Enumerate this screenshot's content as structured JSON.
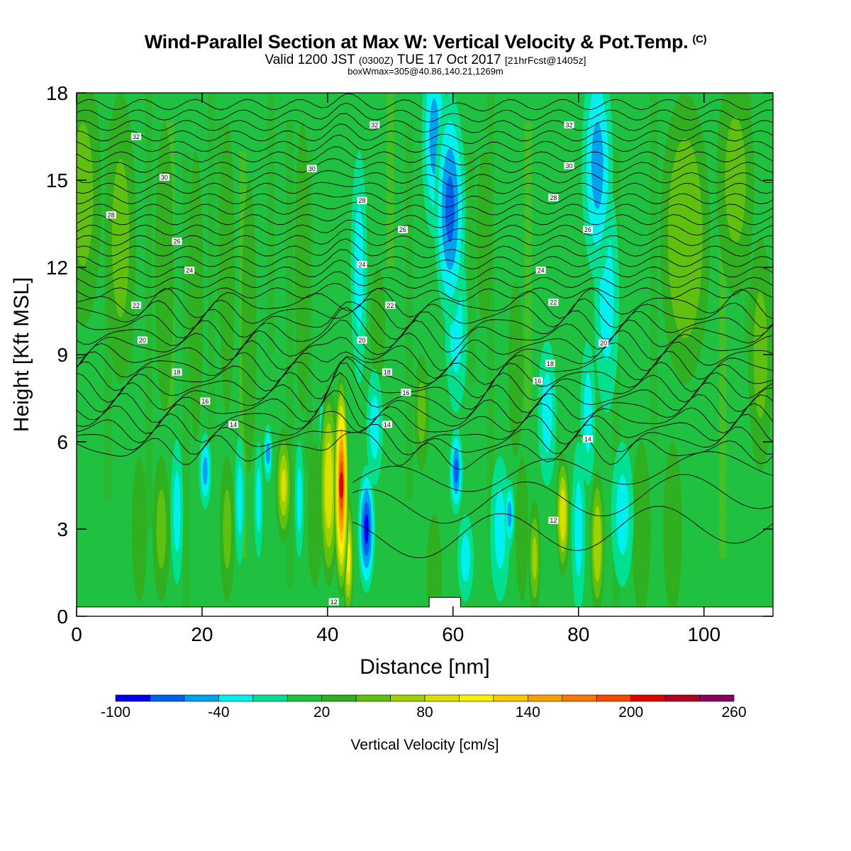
{
  "title": {
    "main": "Wind-Parallel Section at Max W: Vertical Velocity & Pot.Temp.",
    "copyright": "(C)",
    "valid_prefix": "Valid 1200 JST",
    "utc": "(0300Z)",
    "valid_date": "TUE 17 Oct 2017",
    "forecast": "[21hrFcst@1405z]",
    "box": "boxWmax=305@40.86,140.21,1269m"
  },
  "chart_data": {
    "type": "heatmap",
    "xlabel": "Distance [nm]",
    "ylabel": "Height [Kft MSL]",
    "xlim": [
      0,
      111
    ],
    "ylim": [
      0,
      18
    ],
    "x_ticks": [
      0,
      20,
      40,
      60,
      80,
      100
    ],
    "y_ticks": [
      0,
      3,
      6,
      9,
      12,
      15,
      18
    ],
    "colorbar": {
      "label": "Vertical Velocity [cm/s]",
      "tick_labels": [
        "-100",
        "-40",
        "20",
        "80",
        "140",
        "200",
        "260"
      ],
      "tick_values": [
        -100,
        -40,
        20,
        80,
        140,
        200,
        260
      ],
      "levels": [
        -100,
        -80,
        -60,
        -40,
        -20,
        0,
        20,
        40,
        60,
        80,
        100,
        120,
        140,
        160,
        180,
        200,
        220,
        240,
        260
      ],
      "colors": [
        "#0000ee",
        "#0060ee",
        "#00a0f0",
        "#00f0f0",
        "#00e090",
        "#20c040",
        "#30b020",
        "#60c010",
        "#a0d000",
        "#d8e000",
        "#f8f000",
        "#f8c800",
        "#f8a000",
        "#f87800",
        "#f84800",
        "#e00000",
        "#b00020",
        "#880060",
        "#600090"
      ]
    },
    "background_value": 0,
    "features": [
      {
        "x": 1,
        "z": 14.5,
        "width": 3,
        "depth": 4.5,
        "value": 40
      },
      {
        "x": 7,
        "z": 13,
        "width": 2.5,
        "depth": 5,
        "value": 40
      },
      {
        "x": 14,
        "z": 12,
        "width": 1.5,
        "depth": 5,
        "value": 20
      },
      {
        "x": 19,
        "z": 11,
        "width": 1.2,
        "depth": 5,
        "value": 20
      },
      {
        "x": 24,
        "z": 12,
        "width": 1.2,
        "depth": 5,
        "value": 20
      },
      {
        "x": 27.5,
        "z": 10,
        "width": 1.2,
        "depth": 5,
        "value": 20
      },
      {
        "x": 36,
        "z": 12,
        "width": 1.2,
        "depth": 5,
        "value": 20
      },
      {
        "x": 10,
        "z": 3,
        "width": 1.2,
        "depth": 2.5,
        "value": 20
      },
      {
        "x": 13.5,
        "z": 3,
        "width": 1.4,
        "depth": 2.5,
        "value": 40
      },
      {
        "x": 16,
        "z": 3.6,
        "width": 1,
        "depth": 2.5,
        "value": -40
      },
      {
        "x": 20.5,
        "z": 5,
        "width": 1,
        "depth": 1.3,
        "value": -60
      },
      {
        "x": 24,
        "z": 3,
        "width": 1.2,
        "depth": 2.5,
        "value": 40
      },
      {
        "x": 26,
        "z": 4,
        "width": 0.8,
        "depth": 2.2,
        "value": -40
      },
      {
        "x": 29,
        "z": 4,
        "width": 0.7,
        "depth": 2,
        "value": -40
      },
      {
        "x": 30.5,
        "z": 5.6,
        "width": 0.7,
        "depth": 1,
        "value": -60
      },
      {
        "x": 33,
        "z": 4.5,
        "width": 1.3,
        "depth": 2,
        "value": 80
      },
      {
        "x": 35.5,
        "z": 4,
        "width": 0.7,
        "depth": 2,
        "value": -40
      },
      {
        "x": 38,
        "z": 3.5,
        "width": 1.2,
        "depth": 2.5,
        "value": 20
      },
      {
        "x": 39.3,
        "z": 6.5,
        "width": 0.6,
        "depth": 1,
        "value": -80
      },
      {
        "x": 40.2,
        "z": 4.5,
        "width": 1.5,
        "depth": 3.5,
        "value": 90
      },
      {
        "x": 42.2,
        "z": 4.5,
        "width": 1.2,
        "depth": 3.9,
        "value": 200
      },
      {
        "x": 42.3,
        "z": 6.8,
        "width": 0.7,
        "depth": 1.5,
        "value": 120
      },
      {
        "x": 43.3,
        "z": 2,
        "width": 0.9,
        "depth": 2.2,
        "value": 100
      },
      {
        "x": 46.2,
        "z": 3,
        "width": 1.4,
        "depth": 2.2,
        "value": -100
      },
      {
        "x": 47.5,
        "z": 6.5,
        "width": 1.3,
        "depth": 2,
        "value": -40
      },
      {
        "x": 45,
        "z": 12,
        "width": 1.3,
        "depth": 4,
        "value": -40
      },
      {
        "x": 48,
        "z": 10,
        "width": 1.2,
        "depth": 2,
        "value": 20
      },
      {
        "x": 55,
        "z": 7,
        "width": 1.2,
        "depth": 2,
        "value": 40
      },
      {
        "x": 57,
        "z": 1.5,
        "width": 1.2,
        "depth": 2,
        "value": 30
      },
      {
        "x": 57,
        "z": 16.5,
        "width": 2,
        "depth": 3.5,
        "value": -50
      },
      {
        "x": 59.5,
        "z": 14,
        "width": 2.5,
        "depth": 4,
        "value": -70
      },
      {
        "x": 60.5,
        "z": 10,
        "width": 1.8,
        "depth": 3,
        "value": -35
      },
      {
        "x": 60.5,
        "z": 5,
        "width": 1.1,
        "depth": 1.5,
        "value": -70
      },
      {
        "x": 62,
        "z": 2,
        "width": 1.3,
        "depth": 1.5,
        "value": -35
      },
      {
        "x": 65,
        "z": 13,
        "width": 1.3,
        "depth": 3,
        "value": 20
      },
      {
        "x": 67.5,
        "z": 3,
        "width": 1.6,
        "depth": 2.5,
        "value": -35
      },
      {
        "x": 69,
        "z": 3.5,
        "width": 0.8,
        "depth": 1.2,
        "value": -60
      },
      {
        "x": 71,
        "z": 3,
        "width": 1,
        "depth": 2.5,
        "value": 30
      },
      {
        "x": 73,
        "z": 2,
        "width": 1,
        "depth": 2,
        "value": 60
      },
      {
        "x": 70,
        "z": 8.5,
        "width": 1.2,
        "depth": 3,
        "value": 30
      },
      {
        "x": 75,
        "z": 7,
        "width": 1.5,
        "depth": 2.5,
        "value": -40
      },
      {
        "x": 77.5,
        "z": 3.5,
        "width": 1.1,
        "depth": 2.1,
        "value": 90
      },
      {
        "x": 80,
        "z": 3,
        "width": 1.1,
        "depth": 3,
        "value": -40
      },
      {
        "x": 81.5,
        "z": 7,
        "width": 1.2,
        "depth": 2.5,
        "value": -40
      },
      {
        "x": 83,
        "z": 2.5,
        "width": 1.2,
        "depth": 2.5,
        "value": 70
      },
      {
        "x": 83,
        "z": 15.5,
        "width": 2.5,
        "depth": 4,
        "value": -60
      },
      {
        "x": 84.5,
        "z": 11,
        "width": 2,
        "depth": 4,
        "value": -35
      },
      {
        "x": 87,
        "z": 3.5,
        "width": 1.8,
        "depth": 2.5,
        "value": -40
      },
      {
        "x": 90,
        "z": 3,
        "width": 1.5,
        "depth": 3,
        "value": 20
      },
      {
        "x": 95,
        "z": 3,
        "width": 1.5,
        "depth": 3,
        "value": 20
      },
      {
        "x": 97,
        "z": 13,
        "width": 4,
        "depth": 5,
        "value": 45
      },
      {
        "x": 105,
        "z": 15,
        "width": 3,
        "depth": 4,
        "value": 40
      },
      {
        "x": 109,
        "z": 9,
        "width": 2,
        "depth": 4,
        "value": 40
      }
    ],
    "contour_labels": [
      {
        "text": "32",
        "x": 9.5,
        "y": 16.5
      },
      {
        "text": "32",
        "x": 47.5,
        "y": 16.9
      },
      {
        "text": "32",
        "x": 78.5,
        "y": 16.9
      },
      {
        "text": "30",
        "x": 14,
        "y": 15.1
      },
      {
        "text": "30",
        "x": 37.5,
        "y": 15.4
      },
      {
        "text": "30",
        "x": 78.5,
        "y": 15.5
      },
      {
        "text": "28",
        "x": 5.5,
        "y": 13.8
      },
      {
        "text": "28",
        "x": 45.5,
        "y": 14.3
      },
      {
        "text": "28",
        "x": 76,
        "y": 14.4
      },
      {
        "text": "26",
        "x": 16,
        "y": 12.9
      },
      {
        "text": "26",
        "x": 52,
        "y": 13.3
      },
      {
        "text": "26",
        "x": 81.5,
        "y": 13.3
      },
      {
        "text": "24",
        "x": 18,
        "y": 11.9
      },
      {
        "text": "24",
        "x": 45.5,
        "y": 12.1
      },
      {
        "text": "24",
        "x": 74,
        "y": 11.9
      },
      {
        "text": "22",
        "x": 9.5,
        "y": 10.7
      },
      {
        "text": "22",
        "x": 50,
        "y": 10.7
      },
      {
        "text": "22",
        "x": 76,
        "y": 10.8
      },
      {
        "text": "20",
        "x": 10.5,
        "y": 9.5
      },
      {
        "text": "20",
        "x": 45.5,
        "y": 9.5
      },
      {
        "text": "20",
        "x": 84,
        "y": 9.4
      },
      {
        "text": "18",
        "x": 16,
        "y": 8.4
      },
      {
        "text": "18",
        "x": 49.5,
        "y": 8.4
      },
      {
        "text": "18",
        "x": 75.5,
        "y": 8.7
      },
      {
        "text": "16",
        "x": 20.5,
        "y": 7.4
      },
      {
        "text": "16",
        "x": 52.5,
        "y": 7.7
      },
      {
        "text": "16",
        "x": 73.5,
        "y": 8.1
      },
      {
        "text": "14",
        "x": 25,
        "y": 6.6
      },
      {
        "text": "14",
        "x": 49.5,
        "y": 6.6
      },
      {
        "text": "14",
        "x": 81.5,
        "y": 6.1
      },
      {
        "text": "12",
        "x": 41,
        "y": 0.5
      },
      {
        "text": "12",
        "x": 76,
        "y": 3.3
      }
    ]
  }
}
